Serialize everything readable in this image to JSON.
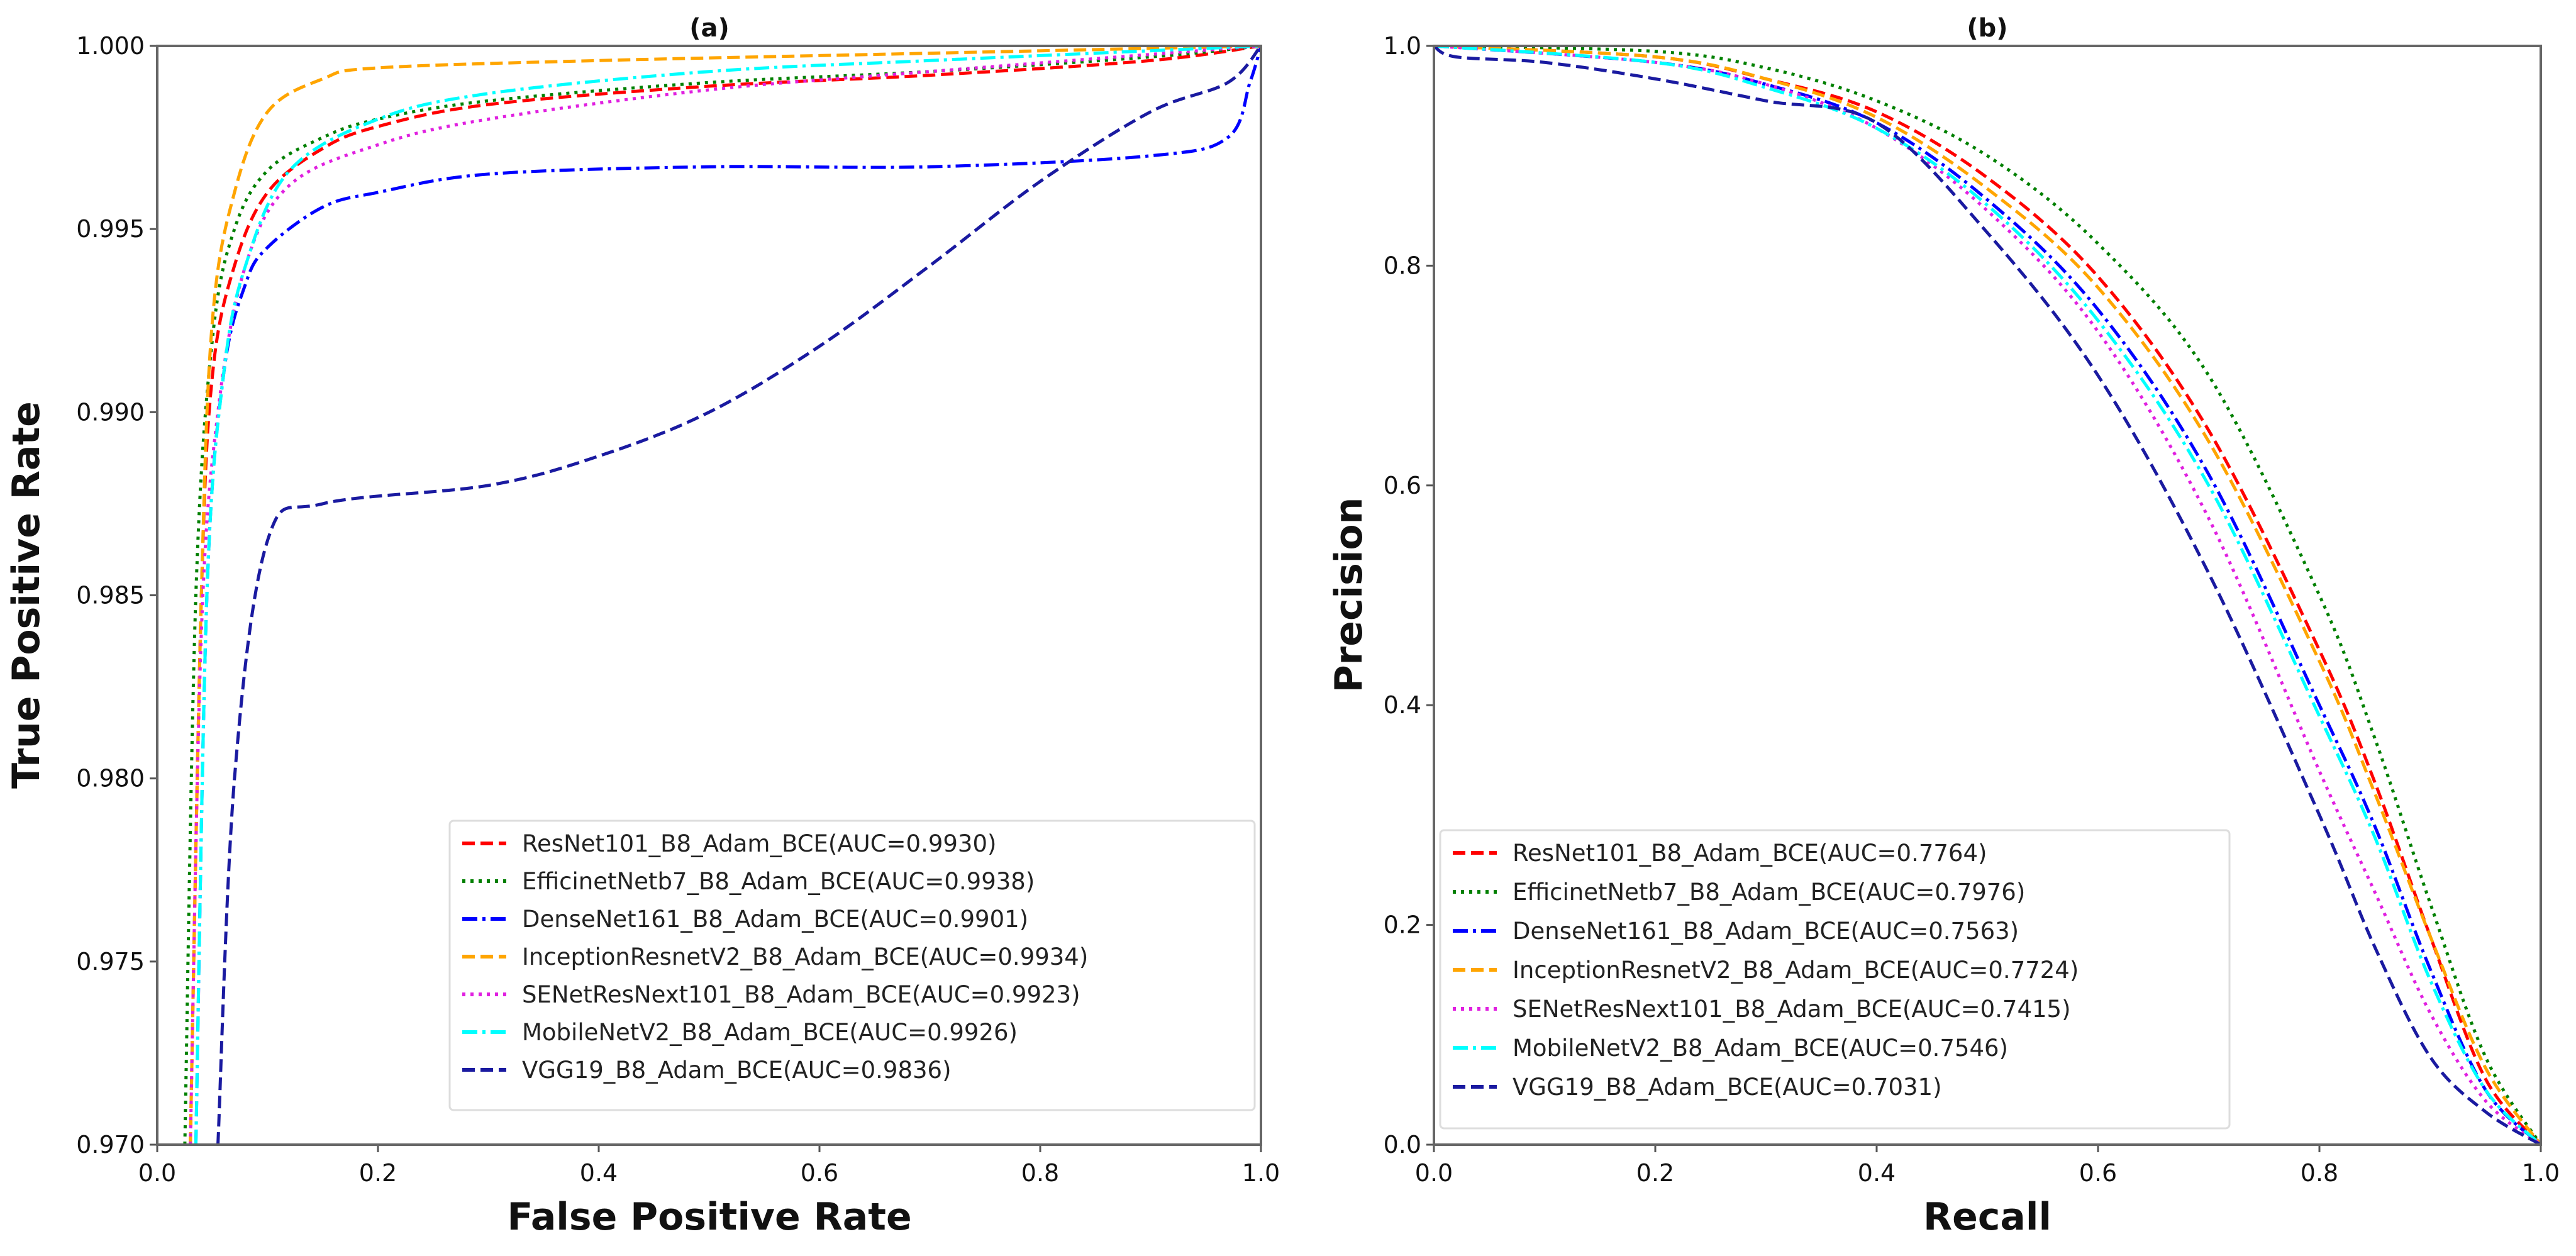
{
  "chart_data": [
    {
      "type": "line",
      "title": "(a)",
      "xlabel": "False Positive Rate",
      "ylabel": "True Positive Rate",
      "xlim": [
        0.0,
        1.0
      ],
      "ylim": [
        0.97,
        1.0
      ],
      "xticks": [
        "0.0",
        "0.2",
        "0.4",
        "0.6",
        "0.8",
        "1.0"
      ],
      "yticks": [
        "0.970",
        "0.975",
        "0.980",
        "0.985",
        "0.990",
        "0.995",
        "1.000"
      ],
      "grid": false,
      "legend_position": "lower-right",
      "series": [
        {
          "name": "ResNet101_B8_Adam_BCE(AUC=0.9930)",
          "color": "#ff0000",
          "style": "dashed",
          "points": [
            [
              0.03,
              0.97
            ],
            [
              0.04,
              0.985
            ],
            [
              0.05,
              0.991
            ],
            [
              0.07,
              0.994
            ],
            [
              0.1,
              0.996
            ],
            [
              0.15,
              0.9972
            ],
            [
              0.2,
              0.9978
            ],
            [
              0.3,
              0.9984
            ],
            [
              0.5,
              0.9989
            ],
            [
              0.7,
              0.9992
            ],
            [
              0.9,
              0.9996
            ],
            [
              1.0,
              1.0
            ]
          ]
        },
        {
          "name": "EfficinetNetb7_B8_Adam_BCE(AUC=0.9938)",
          "color": "#008000",
          "style": "dotted",
          "points": [
            [
              0.025,
              0.97
            ],
            [
              0.035,
              0.985
            ],
            [
              0.05,
              0.992
            ],
            [
              0.07,
              0.995
            ],
            [
              0.1,
              0.9966
            ],
            [
              0.15,
              0.9975
            ],
            [
              0.2,
              0.998
            ],
            [
              0.3,
              0.9985
            ],
            [
              0.5,
              0.999
            ],
            [
              0.7,
              0.9993
            ],
            [
              0.9,
              0.9997
            ],
            [
              1.0,
              1.0
            ]
          ]
        },
        {
          "name": "DenseNet161_B8_Adam_BCE(AUC=0.9901)",
          "color": "#0000ff",
          "style": "dashdot",
          "points": [
            [
              0.035,
              0.97
            ],
            [
              0.045,
              0.985
            ],
            [
              0.06,
              0.991
            ],
            [
              0.08,
              0.9935
            ],
            [
              0.1,
              0.9945
            ],
            [
              0.15,
              0.9956
            ],
            [
              0.2,
              0.996
            ],
            [
              0.3,
              0.9965
            ],
            [
              0.5,
              0.9967
            ],
            [
              0.7,
              0.9967
            ],
            [
              0.9,
              0.997
            ],
            [
              0.97,
              0.9975
            ],
            [
              0.99,
              0.999
            ],
            [
              1.0,
              1.0
            ]
          ]
        },
        {
          "name": "InceptionResnetV2_B8_Adam_BCE(AUC=0.9934)",
          "color": "#ffa500",
          "style": "dashed",
          "points": [
            [
              0.03,
              0.97
            ],
            [
              0.04,
              0.985
            ],
            [
              0.05,
              0.9925
            ],
            [
              0.07,
              0.996
            ],
            [
              0.1,
              0.9982
            ],
            [
              0.15,
              0.9991
            ],
            [
              0.2,
              0.9994
            ],
            [
              0.4,
              0.9996
            ],
            [
              0.7,
              0.9998
            ],
            [
              1.0,
              1.0
            ]
          ]
        },
        {
          "name": "SENetResNext101_B8_Adam_BCE(AUC=0.9923)",
          "color": "#e020e0",
          "style": "dotted",
          "points": [
            [
              0.03,
              0.97
            ],
            [
              0.04,
              0.984
            ],
            [
              0.055,
              0.99
            ],
            [
              0.08,
              0.994
            ],
            [
              0.12,
              0.9962
            ],
            [
              0.2,
              0.9973
            ],
            [
              0.3,
              0.998
            ],
            [
              0.5,
              0.9988
            ],
            [
              0.7,
              0.9993
            ],
            [
              1.0,
              1.0
            ]
          ]
        },
        {
          "name": "MobileNetV2_B8_Adam_BCE(AUC=0.9926)",
          "color": "#00ffff",
          "style": "dashdot",
          "points": [
            [
              0.035,
              0.97
            ],
            [
              0.045,
              0.985
            ],
            [
              0.06,
              0.991
            ],
            [
              0.08,
              0.994
            ],
            [
              0.12,
              0.9966
            ],
            [
              0.2,
              0.998
            ],
            [
              0.3,
              0.9987
            ],
            [
              0.5,
              0.9993
            ],
            [
              0.7,
              0.9996
            ],
            [
              1.0,
              1.0
            ]
          ]
        },
        {
          "name": "VGG19_B8_Adam_BCE(AUC=0.9836)",
          "color": "#1a1aa0",
          "style": "dashed",
          "points": [
            [
              0.055,
              0.97
            ],
            [
              0.07,
              0.98
            ],
            [
              0.1,
              0.9865
            ],
            [
              0.15,
              0.9875
            ],
            [
              0.3,
              0.988
            ],
            [
              0.4,
              0.9888
            ],
            [
              0.5,
              0.99
            ],
            [
              0.6,
              0.9918
            ],
            [
              0.7,
              0.994
            ],
            [
              0.8,
              0.9963
            ],
            [
              0.9,
              0.9982
            ],
            [
              0.97,
              0.999
            ],
            [
              1.0,
              1.0
            ]
          ]
        }
      ]
    },
    {
      "type": "line",
      "title": "(b)",
      "xlabel": "Recall",
      "ylabel": "Precision",
      "xlim": [
        0.0,
        1.0
      ],
      "ylim": [
        0.0,
        1.0
      ],
      "xticks": [
        "0.0",
        "0.2",
        "0.4",
        "0.6",
        "0.8",
        "1.0"
      ],
      "yticks": [
        "0.0",
        "0.2",
        "0.4",
        "0.6",
        "0.8",
        "1.0"
      ],
      "grid": false,
      "legend_position": "lower-left",
      "series": [
        {
          "name": "ResNet101_B8_Adam_BCE(AUC=0.7764)",
          "color": "#ff0000",
          "style": "dashed",
          "points": [
            [
              0,
              1
            ],
            [
              0.2,
              0.99
            ],
            [
              0.3,
              0.97
            ],
            [
              0.4,
              0.94
            ],
            [
              0.5,
              0.88
            ],
            [
              0.6,
              0.79
            ],
            [
              0.7,
              0.65
            ],
            [
              0.8,
              0.45
            ],
            [
              0.85,
              0.33
            ],
            [
              0.9,
              0.19
            ],
            [
              0.95,
              0.06
            ],
            [
              1,
              0
            ]
          ]
        },
        {
          "name": "EfficinetNetb7_B8_Adam_BCE(AUC=0.7976)",
          "color": "#008000",
          "style": "dotted",
          "points": [
            [
              0,
              1
            ],
            [
              0.2,
              0.995
            ],
            [
              0.3,
              0.98
            ],
            [
              0.4,
              0.95
            ],
            [
              0.5,
              0.9
            ],
            [
              0.6,
              0.82
            ],
            [
              0.7,
              0.7
            ],
            [
              0.8,
              0.5
            ],
            [
              0.85,
              0.37
            ],
            [
              0.9,
              0.22
            ],
            [
              0.95,
              0.08
            ],
            [
              1,
              0
            ]
          ]
        },
        {
          "name": "DenseNet161_B8_Adam_BCE(AUC=0.7563)",
          "color": "#0000ff",
          "style": "dashdot",
          "points": [
            [
              0,
              1
            ],
            [
              0.2,
              0.985
            ],
            [
              0.3,
              0.965
            ],
            [
              0.4,
              0.93
            ],
            [
              0.5,
              0.86
            ],
            [
              0.6,
              0.76
            ],
            [
              0.7,
              0.61
            ],
            [
              0.8,
              0.4
            ],
            [
              0.85,
              0.29
            ],
            [
              0.9,
              0.16
            ],
            [
              0.95,
              0.05
            ],
            [
              1,
              0
            ]
          ]
        },
        {
          "name": "InceptionResnetV2_B8_Adam_BCE(AUC=0.7724)",
          "color": "#ffa500",
          "style": "dashed",
          "points": [
            [
              0,
              1
            ],
            [
              0.2,
              0.99
            ],
            [
              0.3,
              0.97
            ],
            [
              0.4,
              0.935
            ],
            [
              0.5,
              0.87
            ],
            [
              0.6,
              0.78
            ],
            [
              0.7,
              0.64
            ],
            [
              0.8,
              0.44
            ],
            [
              0.85,
              0.32
            ],
            [
              0.9,
              0.19
            ],
            [
              0.95,
              0.07
            ],
            [
              1,
              0
            ]
          ]
        },
        {
          "name": "SENetResNext101_B8_Adam_BCE(AUC=0.7415)",
          "color": "#e020e0",
          "style": "dotted",
          "points": [
            [
              0,
              1
            ],
            [
              0.2,
              0.985
            ],
            [
              0.3,
              0.965
            ],
            [
              0.4,
              0.925
            ],
            [
              0.5,
              0.85
            ],
            [
              0.6,
              0.74
            ],
            [
              0.7,
              0.57
            ],
            [
              0.8,
              0.34
            ],
            [
              0.85,
              0.23
            ],
            [
              0.9,
              0.12
            ],
            [
              0.95,
              0.04
            ],
            [
              1,
              0
            ]
          ]
        },
        {
          "name": "MobileNetV2_B8_Adam_BCE(AUC=0.7546)",
          "color": "#00ffff",
          "style": "dashdot",
          "points": [
            [
              0,
              1
            ],
            [
              0.2,
              0.985
            ],
            [
              0.3,
              0.962
            ],
            [
              0.4,
              0.925
            ],
            [
              0.5,
              0.855
            ],
            [
              0.6,
              0.75
            ],
            [
              0.7,
              0.6
            ],
            [
              0.8,
              0.39
            ],
            [
              0.85,
              0.28
            ],
            [
              0.9,
              0.15
            ],
            [
              0.95,
              0.05
            ],
            [
              1,
              0
            ]
          ]
        },
        {
          "name": "VGG19_B8_Adam_BCE(AUC=0.7031)",
          "color": "#1a1aa0",
          "style": "dashed",
          "points": [
            [
              0,
              1
            ],
            [
              0.02,
              0.99
            ],
            [
              0.1,
              0.985
            ],
            [
              0.2,
              0.97
            ],
            [
              0.3,
              0.95
            ],
            [
              0.4,
              0.93
            ],
            [
              0.5,
              0.83
            ],
            [
              0.6,
              0.7
            ],
            [
              0.7,
              0.52
            ],
            [
              0.8,
              0.3
            ],
            [
              0.85,
              0.18
            ],
            [
              0.9,
              0.08
            ],
            [
              0.95,
              0.03
            ],
            [
              1,
              0
            ]
          ]
        }
      ]
    }
  ]
}
